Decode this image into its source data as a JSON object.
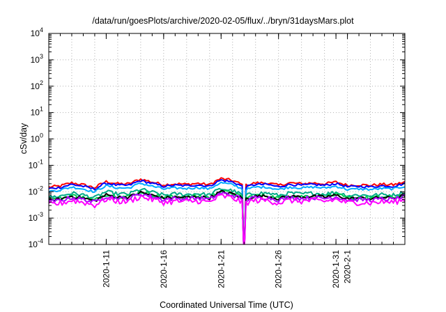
{
  "chart_data": {
    "type": "line",
    "title": "/data/run/goesPlots/archive/2020-02-05/flux/../bryn/31daysMars.plot",
    "xlabel": "Coordinated Universal Time (UTC)",
    "ylabel": "cSv/day",
    "yscale": "log",
    "ylim": [
      0.0001,
      10000
    ],
    "y_ticks": [
      {
        "mantissa": "10",
        "exp": "-4"
      },
      {
        "mantissa": "10",
        "exp": "-3"
      },
      {
        "mantissa": "10",
        "exp": "-2"
      },
      {
        "mantissa": "10",
        "exp": "-1"
      },
      {
        "mantissa": "10",
        "exp": "0"
      },
      {
        "mantissa": "10",
        "exp": "1"
      },
      {
        "mantissa": "10",
        "exp": "2"
      },
      {
        "mantissa": "10",
        "exp": "3"
      },
      {
        "mantissa": "10",
        "exp": "4"
      }
    ],
    "xlim": [
      "2020-01-06",
      "2020-02-06"
    ],
    "x_ticks": [
      "2020-1-11",
      "2020-1-16",
      "2020-1-21",
      "2020-1-26",
      "2020-1-31",
      "2020-2-1"
    ],
    "grid": true,
    "gap": {
      "start": "2020-01-22T22:00",
      "end": "2020-01-23T04:00"
    },
    "daily_profile": [
      0.9,
      1.0,
      1.3,
      1.1,
      0.85,
      1.45,
      1.2,
      1.2,
      1.8,
      1.4,
      1.1,
      1.2,
      1.15,
      1.25,
      1.1,
      1.9,
      1.6,
      1.0,
      1.3,
      1.3,
      1.05,
      1.3,
      1.2,
      1.3,
      1.2,
      1.4,
      1.05,
      1.1,
      1.05,
      1.15,
      1.1,
      1.4
    ],
    "series": [
      {
        "color": "#ff0000",
        "base": 0.0165,
        "jitter": 0.12
      },
      {
        "color": "#0000ff",
        "base": 0.0145,
        "jitter": 0.1
      },
      {
        "color": "#00aaff",
        "base": 0.0115,
        "jitter": 0.1
      },
      {
        "color": "#00aa88",
        "base": 0.0068,
        "jitter": 0.16
      },
      {
        "color": "#00cc55",
        "base": 0.0055,
        "jitter": 0.16
      },
      {
        "color": "#000000",
        "base": 0.0052,
        "jitter": 0.14
      },
      {
        "color": "#aa00ff",
        "base": 0.0046,
        "jitter": 0.18
      },
      {
        "color": "#ff00ff",
        "base": 0.0036,
        "jitter": 0.26
      }
    ]
  }
}
